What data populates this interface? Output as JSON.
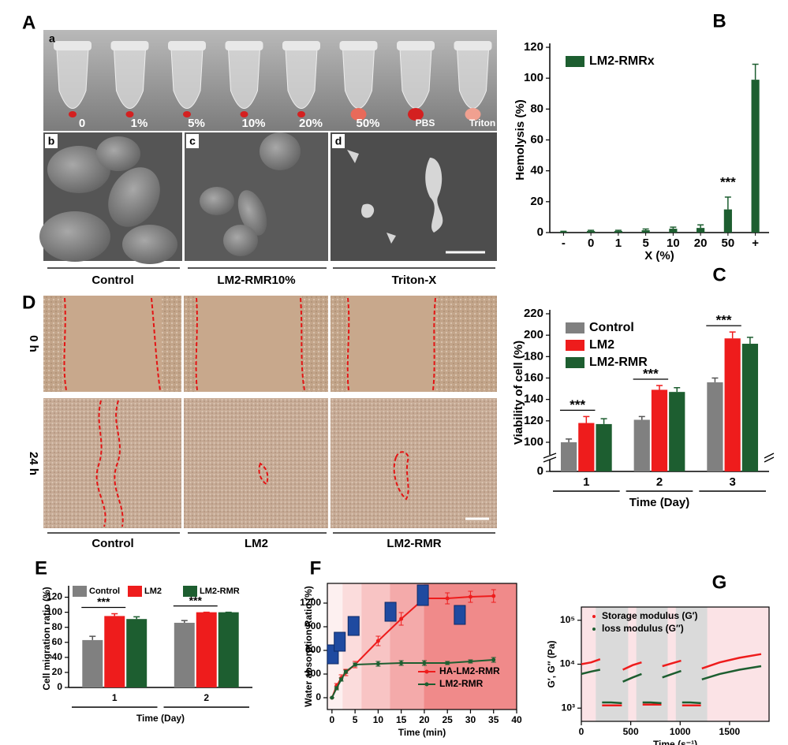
{
  "figure": {
    "A": {
      "label": "A",
      "sublabels": [
        "a",
        "b",
        "c",
        "d"
      ],
      "tubes": [
        "0",
        "1%",
        "5%",
        "10%",
        "20%",
        "50%",
        "PBS",
        "Triton"
      ],
      "captions": [
        "Control",
        "LM2-RMR10%",
        "Triton-X"
      ]
    },
    "D": {
      "label": "D",
      "rows": [
        "0 h",
        "24 h"
      ],
      "captions": [
        "Control",
        "LM2",
        "LM2-RMR"
      ]
    }
  },
  "chart_data": [
    {
      "label": "B",
      "type": "bar",
      "ylabel": "Hemolysis (%)",
      "xlabel": "X (%)",
      "categories": [
        "-",
        "0",
        "1",
        "5",
        "10",
        "20",
        "50",
        "+"
      ],
      "series": [
        {
          "name": "LM2-RMRx",
          "color": "#1d5e30",
          "values": [
            0.5,
            1,
            1,
            1.5,
            2.5,
            3,
            15,
            99
          ],
          "errors": [
            0.3,
            0.5,
            0.5,
            0.8,
            1,
            2,
            8,
            10
          ]
        }
      ],
      "ylim": [
        0,
        120
      ],
      "yticks": [
        0,
        20,
        40,
        60,
        80,
        100,
        120
      ],
      "legend": "upper left",
      "annotations": [
        {
          "text": "***",
          "category": "50"
        }
      ]
    },
    {
      "label": "C",
      "type": "bar",
      "ylabel": "Viability of cell (%)",
      "xlabel": "Time (Day)",
      "categories": [
        "1",
        "2",
        "3"
      ],
      "series": [
        {
          "name": "Control",
          "color": "#808080",
          "values": [
            100,
            121,
            156
          ],
          "errors": [
            3,
            3,
            4
          ]
        },
        {
          "name": "LM2",
          "color": "#ee1c1c",
          "values": [
            118,
            149,
            197
          ],
          "errors": [
            6,
            4,
            6
          ]
        },
        {
          "name": "LM2-RMR",
          "color": "#1d5e30",
          "values": [
            117,
            147,
            192
          ],
          "errors": [
            5,
            4,
            6
          ]
        }
      ],
      "ylim": [
        0,
        220
      ],
      "ybreak": [
        0,
        100
      ],
      "yticks": [
        0,
        100,
        120,
        140,
        160,
        180,
        200,
        220
      ],
      "legend": "upper left",
      "annotations": [
        {
          "text": "***",
          "category": "1"
        },
        {
          "text": "***",
          "category": "2"
        },
        {
          "text": "***",
          "category": "3"
        }
      ]
    },
    {
      "label": "E",
      "type": "bar",
      "ylabel": "Cell migration ratio (%)",
      "xlabel": "Time (Day)",
      "categories": [
        "1",
        "2"
      ],
      "series": [
        {
          "name": "Control",
          "color": "#808080",
          "values": [
            63,
            86
          ],
          "errors": [
            5,
            3
          ]
        },
        {
          "name": "LM2",
          "color": "#ee1c1c",
          "values": [
            95,
            100
          ],
          "errors": [
            3,
            0
          ]
        },
        {
          "name": "LM2-RMR",
          "color": "#1d5e30",
          "values": [
            91,
            100
          ],
          "errors": [
            3,
            0
          ]
        }
      ],
      "ylim": [
        0,
        130
      ],
      "yticks": [
        0,
        20,
        40,
        60,
        80,
        100,
        120
      ],
      "legend": "top",
      "annotations": [
        {
          "text": "***",
          "category": "1"
        },
        {
          "text": "***",
          "category": "2"
        }
      ]
    },
    {
      "label": "F",
      "type": "line",
      "ylabel": "Water absorption Ratio (%)",
      "xlabel": "Time (min)",
      "x": [
        0,
        1,
        2,
        3,
        5,
        10,
        15,
        20,
        25,
        30,
        35
      ],
      "series": [
        {
          "name": "HA-LM2-RMR",
          "color": "#ee1c1c",
          "values": [
            0,
            150,
            250,
            320,
            420,
            720,
            1000,
            1260,
            1260,
            1280,
            1290
          ],
          "errors": [
            0,
            30,
            40,
            40,
            40,
            60,
            80,
            80,
            70,
            70,
            80
          ]
        },
        {
          "name": "LM2-RMR",
          "color": "#1d5e30",
          "values": [
            0,
            120,
            230,
            330,
            420,
            430,
            440,
            440,
            440,
            460,
            480
          ],
          "errors": [
            0,
            20,
            20,
            20,
            20,
            30,
            30,
            30,
            20,
            20,
            30
          ]
        }
      ],
      "xlim": [
        -1,
        40
      ],
      "xticks": [
        0,
        5,
        10,
        15,
        20,
        25,
        30,
        35,
        40
      ],
      "ylim": [
        -150,
        1450
      ],
      "yticks": [
        0,
        300,
        600,
        900,
        1200
      ],
      "legend": "lower right",
      "box": true
    },
    {
      "label": "G",
      "type": "line",
      "ylabel": "G′, G′′ (Pa)",
      "xlabel": "Time (s⁻¹)",
      "ylog": true,
      "x": [
        0,
        100,
        190,
        200,
        210,
        300,
        410,
        415,
        420,
        520,
        610,
        615,
        620,
        700,
        810,
        815,
        820,
        920,
        1010,
        1015,
        1020,
        1100,
        1210,
        1215,
        1220,
        1400,
        1600,
        1820
      ],
      "series": [
        {
          "name": "Storage modulus (G′)",
          "color": "#ee1c1c",
          "values": [
            10000,
            11000,
            13000,
            null,
            1150,
            1150,
            1150,
            null,
            7500,
            9500,
            11000,
            null,
            1200,
            1200,
            1200,
            null,
            9000,
            10500,
            12000,
            null,
            1150,
            1150,
            1150,
            null,
            8000,
            11000,
            14000,
            17000
          ]
        },
        {
          "name": "loss modulus (G′′)",
          "color": "#1d5e30",
          "values": [
            6000,
            6800,
            7500,
            null,
            1350,
            1350,
            1300,
            null,
            4000,
            5000,
            6000,
            null,
            1350,
            1350,
            1300,
            null,
            5000,
            6000,
            7000,
            null,
            1350,
            1350,
            1300,
            null,
            4500,
            6000,
            7500,
            9000
          ]
        }
      ],
      "xlim": [
        0,
        1900
      ],
      "xticks": [
        0,
        500,
        1000,
        1500
      ],
      "ylim": [
        500,
        200000
      ],
      "yticks": [
        {
          "value": 1000,
          "label": "10³"
        },
        {
          "value": 10000,
          "label": "10⁴"
        },
        {
          "value": 100000,
          "label": "10⁵"
        }
      ],
      "legend": "upper left",
      "box": true
    }
  ]
}
